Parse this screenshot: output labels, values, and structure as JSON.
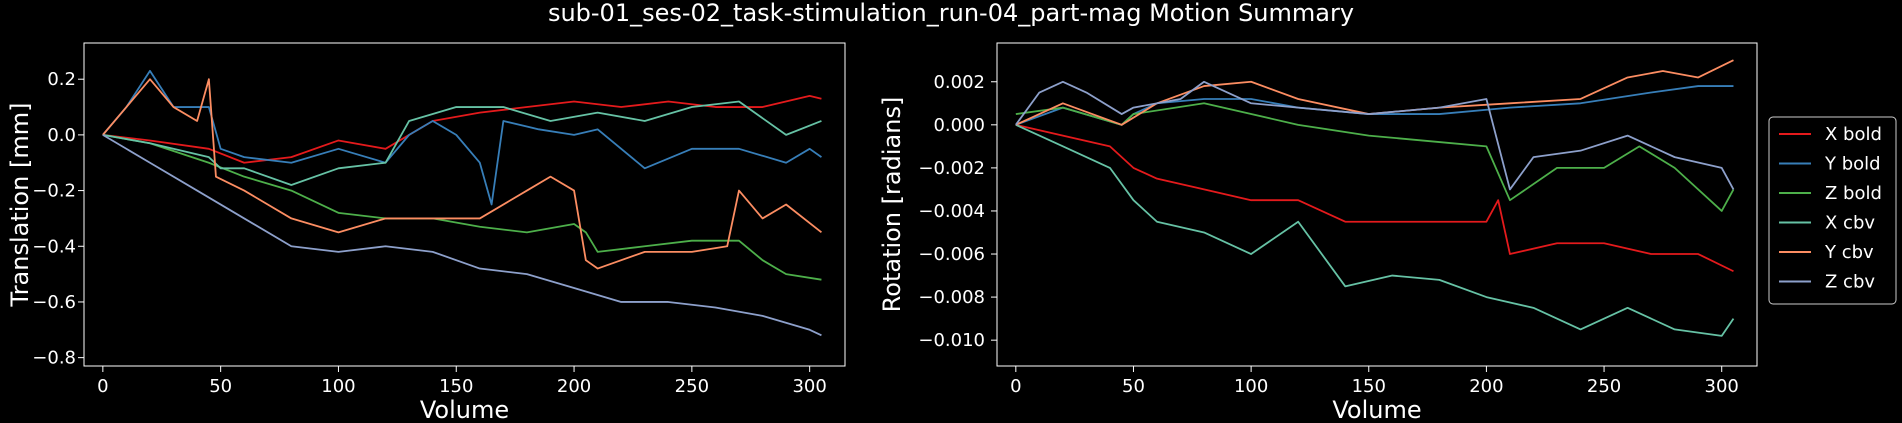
{
  "title": "sub-01_ses-02_task-stimulation_run-04_part-mag Motion Summary",
  "colors": {
    "background": "#000000",
    "foreground": "#ffffff"
  },
  "chart_data": [
    {
      "type": "line",
      "title": "",
      "xlabel": "Volume",
      "ylabel": "Translation [mm]",
      "xlim": [
        -8,
        315
      ],
      "ylim": [
        -0.83,
        0.33
      ],
      "xticks": [
        0,
        50,
        100,
        150,
        200,
        250,
        300
      ],
      "xtick_labels": [
        "0",
        "50",
        "100",
        "150",
        "200",
        "250",
        "300"
      ],
      "yticks": [
        -0.8,
        -0.6,
        -0.4,
        -0.2,
        0.0,
        0.2
      ],
      "ytick_labels": [
        "−0.8",
        "−0.6",
        "−0.4",
        "−0.2",
        "0.0",
        "0.2"
      ],
      "grid": false,
      "series": [
        {
          "name": "X bold",
          "color": "#e41a1c",
          "x": [
            0,
            20,
            45,
            60,
            80,
            100,
            120,
            140,
            160,
            180,
            200,
            220,
            240,
            260,
            280,
            300,
            305
          ],
          "y": [
            0.0,
            -0.02,
            -0.05,
            -0.1,
            -0.08,
            -0.02,
            -0.05,
            0.05,
            0.08,
            0.1,
            0.12,
            0.1,
            0.12,
            0.1,
            0.1,
            0.14,
            0.13
          ]
        },
        {
          "name": "Y bold",
          "color": "#377eb8",
          "x": [
            0,
            10,
            20,
            30,
            45,
            50,
            60,
            80,
            100,
            120,
            130,
            140,
            150,
            160,
            165,
            170,
            185,
            200,
            210,
            230,
            250,
            270,
            290,
            300,
            305
          ],
          "y": [
            0.0,
            0.1,
            0.23,
            0.1,
            0.1,
            -0.05,
            -0.08,
            -0.1,
            -0.05,
            -0.1,
            0.0,
            0.05,
            0.0,
            -0.1,
            -0.25,
            0.05,
            0.02,
            0.0,
            0.02,
            -0.12,
            -0.05,
            -0.05,
            -0.1,
            -0.05,
            -0.08
          ]
        },
        {
          "name": "Z bold",
          "color": "#4daf4a",
          "x": [
            0,
            20,
            45,
            60,
            80,
            100,
            120,
            140,
            160,
            180,
            200,
            205,
            210,
            230,
            250,
            270,
            280,
            290,
            305
          ],
          "y": [
            0.0,
            -0.03,
            -0.1,
            -0.15,
            -0.2,
            -0.28,
            -0.3,
            -0.3,
            -0.33,
            -0.35,
            -0.32,
            -0.35,
            -0.42,
            -0.4,
            -0.38,
            -0.38,
            -0.45,
            -0.5,
            -0.52
          ]
        },
        {
          "name": "X cbv",
          "color": "#66c2a5",
          "x": [
            0,
            20,
            45,
            50,
            60,
            80,
            100,
            120,
            130,
            150,
            170,
            190,
            210,
            230,
            250,
            270,
            290,
            305
          ],
          "y": [
            0.0,
            -0.03,
            -0.08,
            -0.12,
            -0.12,
            -0.18,
            -0.12,
            -0.1,
            0.05,
            0.1,
            0.1,
            0.05,
            0.08,
            0.05,
            0.1,
            0.12,
            0.0,
            0.05
          ]
        },
        {
          "name": "Y cbv",
          "color": "#fc8d62",
          "x": [
            0,
            10,
            20,
            30,
            40,
            45,
            48,
            60,
            80,
            100,
            120,
            140,
            160,
            180,
            190,
            200,
            205,
            210,
            230,
            250,
            265,
            270,
            280,
            290,
            305
          ],
          "y": [
            0.0,
            0.1,
            0.2,
            0.1,
            0.05,
            0.2,
            -0.15,
            -0.2,
            -0.3,
            -0.35,
            -0.3,
            -0.3,
            -0.3,
            -0.2,
            -0.15,
            -0.2,
            -0.45,
            -0.48,
            -0.42,
            -0.42,
            -0.4,
            -0.2,
            -0.3,
            -0.25,
            -0.35
          ]
        },
        {
          "name": "Z cbv",
          "color": "#8da0cb",
          "x": [
            0,
            20,
            40,
            60,
            80,
            100,
            120,
            140,
            160,
            180,
            200,
            220,
            240,
            260,
            280,
            300,
            305
          ],
          "y": [
            0.0,
            -0.1,
            -0.2,
            -0.3,
            -0.4,
            -0.42,
            -0.4,
            -0.42,
            -0.48,
            -0.5,
            -0.55,
            -0.6,
            -0.6,
            -0.62,
            -0.65,
            -0.7,
            -0.72
          ]
        }
      ]
    },
    {
      "type": "line",
      "title": "",
      "xlabel": "Volume",
      "ylabel": "Rotation [radians]",
      "xlim": [
        -8,
        315
      ],
      "ylim": [
        -0.0112,
        0.0038
      ],
      "xticks": [
        0,
        50,
        100,
        150,
        200,
        250,
        300
      ],
      "xtick_labels": [
        "0",
        "50",
        "100",
        "150",
        "200",
        "250",
        "300"
      ],
      "yticks": [
        -0.01,
        -0.008,
        -0.006,
        -0.004,
        -0.002,
        0.0,
        0.002
      ],
      "ytick_labels": [
        "−0.010",
        "−0.008",
        "−0.006",
        "−0.004",
        "−0.002",
        "0.000",
        "0.002"
      ],
      "grid": false,
      "legend_position": "right-outside",
      "series": [
        {
          "name": "X bold",
          "color": "#e41a1c",
          "x": [
            0,
            20,
            40,
            50,
            60,
            80,
            100,
            120,
            140,
            160,
            180,
            200,
            205,
            210,
            230,
            250,
            270,
            290,
            305
          ],
          "y": [
            0.0,
            -0.0005,
            -0.001,
            -0.002,
            -0.0025,
            -0.003,
            -0.0035,
            -0.0035,
            -0.0045,
            -0.0045,
            -0.0045,
            -0.0045,
            -0.0035,
            -0.006,
            -0.0055,
            -0.0055,
            -0.006,
            -0.006,
            -0.0068
          ]
        },
        {
          "name": "Y bold",
          "color": "#377eb8",
          "x": [
            0,
            20,
            45,
            50,
            60,
            80,
            100,
            120,
            150,
            180,
            210,
            240,
            270,
            290,
            305
          ],
          "y": [
            0.0,
            0.0008,
            0.0,
            0.0005,
            0.001,
            0.0012,
            0.0012,
            0.0008,
            0.0005,
            0.0005,
            0.0008,
            0.001,
            0.0015,
            0.0018,
            0.0018
          ]
        },
        {
          "name": "Z bold",
          "color": "#4daf4a",
          "x": [
            0,
            20,
            45,
            50,
            80,
            100,
            120,
            150,
            180,
            200,
            210,
            230,
            250,
            265,
            280,
            300,
            305
          ],
          "y": [
            0.0005,
            0.0008,
            0.0,
            0.0005,
            0.001,
            0.0005,
            0.0,
            -0.0005,
            -0.0008,
            -0.001,
            -0.0035,
            -0.002,
            -0.002,
            -0.001,
            -0.002,
            -0.004,
            -0.003
          ]
        },
        {
          "name": "X cbv",
          "color": "#66c2a5",
          "x": [
            0,
            20,
            40,
            50,
            60,
            80,
            100,
            120,
            140,
            160,
            180,
            200,
            220,
            240,
            260,
            280,
            300,
            305
          ],
          "y": [
            0.0,
            -0.001,
            -0.002,
            -0.0035,
            -0.0045,
            -0.005,
            -0.006,
            -0.0045,
            -0.0075,
            -0.007,
            -0.0072,
            -0.008,
            -0.0085,
            -0.0095,
            -0.0085,
            -0.0095,
            -0.0098,
            -0.009
          ]
        },
        {
          "name": "Y cbv",
          "color": "#fc8d62",
          "x": [
            0,
            20,
            45,
            60,
            80,
            100,
            120,
            150,
            180,
            210,
            240,
            260,
            275,
            290,
            305
          ],
          "y": [
            0.0,
            0.001,
            0.0,
            0.001,
            0.0018,
            0.002,
            0.0012,
            0.0005,
            0.0008,
            0.001,
            0.0012,
            0.0022,
            0.0025,
            0.0022,
            0.003
          ]
        },
        {
          "name": "Z cbv",
          "color": "#8da0cb",
          "x": [
            0,
            10,
            20,
            30,
            45,
            50,
            70,
            80,
            100,
            120,
            150,
            180,
            200,
            210,
            220,
            240,
            260,
            280,
            300,
            305
          ],
          "y": [
            0.0,
            0.0015,
            0.002,
            0.0015,
            0.0005,
            0.0008,
            0.0012,
            0.002,
            0.001,
            0.0008,
            0.0005,
            0.0008,
            0.0012,
            -0.003,
            -0.0015,
            -0.0012,
            -0.0005,
            -0.0015,
            -0.002,
            -0.003
          ]
        }
      ]
    }
  ]
}
